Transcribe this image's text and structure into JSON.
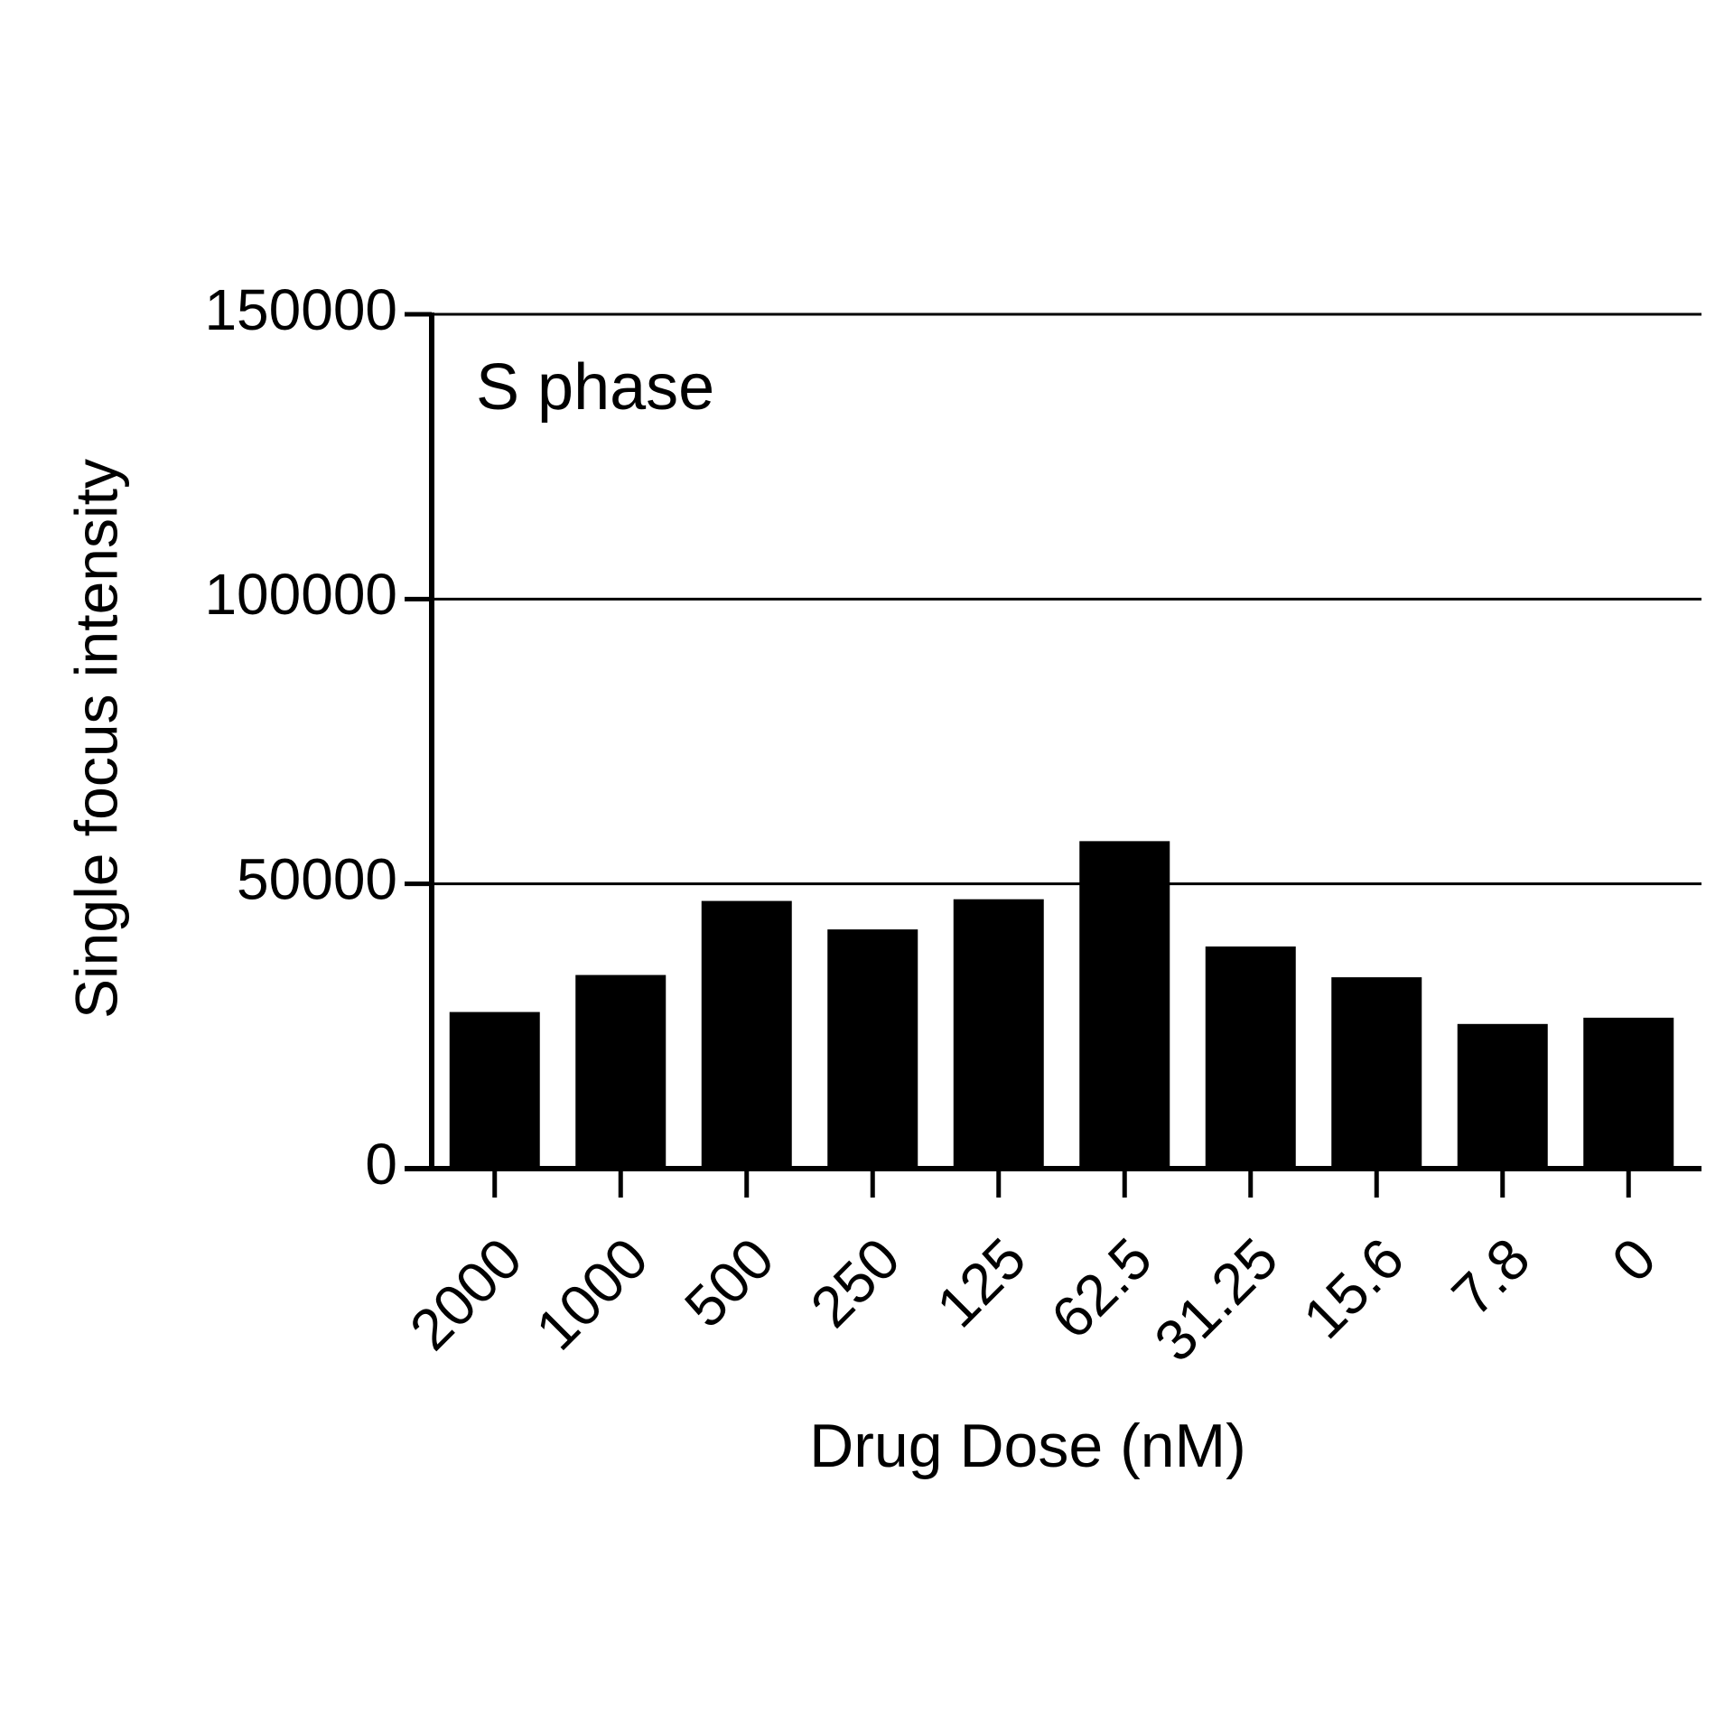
{
  "chart_data": {
    "type": "bar",
    "annotation": "S phase",
    "x_label": "Drug Dose (nM)",
    "y_label": "Single focus intensity",
    "categories": [
      "2000",
      "1000",
      "500",
      "250",
      "125",
      "62.5",
      "31.25",
      "15.6",
      "7.8",
      "0"
    ],
    "values": [
      27500,
      34000,
      47000,
      42000,
      47300,
      57500,
      39000,
      33600,
      25400,
      26500
    ],
    "color": "#000000",
    "ylim": [
      0,
      150000
    ],
    "yticks": [
      0,
      50000,
      100000,
      150000
    ],
    "grid": true
  }
}
